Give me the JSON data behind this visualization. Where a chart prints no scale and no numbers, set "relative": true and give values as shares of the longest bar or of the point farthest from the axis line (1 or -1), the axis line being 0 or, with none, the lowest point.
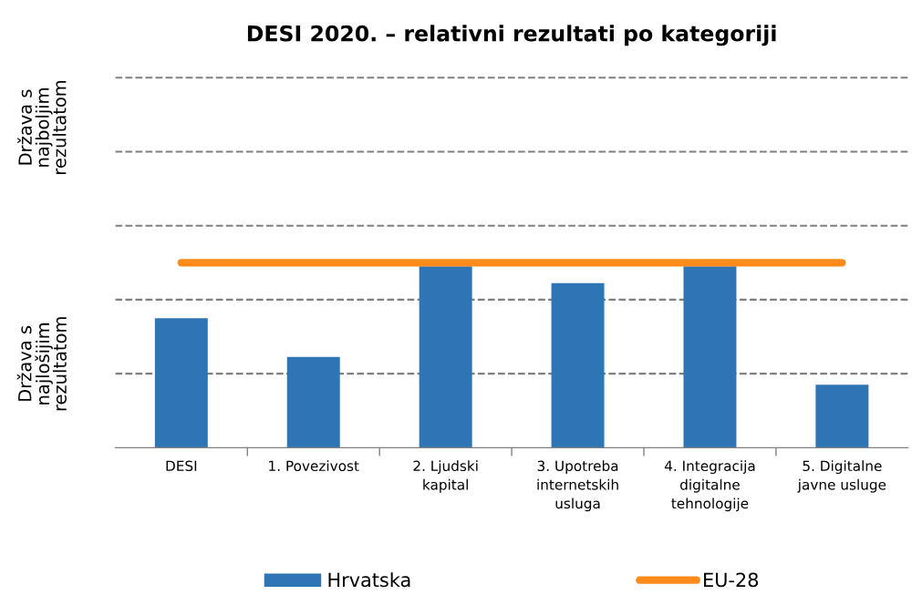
{
  "chart_data": {
    "type": "bar",
    "title": "DESI 2020. – relativni rezultati po kategoriji",
    "categories": [
      "DESI",
      "1. Povezivost",
      "2. Ljudski\nkapital",
      "3. Upotreba\ninternetskih\nusluga",
      "4. Integracija\ndigitalne\ntehnologije",
      "5. Digitalne\njavne usluge"
    ],
    "relative": true,
    "series": [
      {
        "name": "Hrvatska",
        "color": "#2e75b6",
        "values": [
          0.7,
          0.49,
          0.98,
          0.89,
          0.98,
          0.34
        ]
      },
      {
        "name": "EU-28",
        "type": "line",
        "color": "#ff8c1a",
        "values": [
          1,
          1,
          1,
          1,
          1,
          1
        ]
      }
    ],
    "annotations": [
      "Država s\nnajboljim\nrezultatom",
      "Država s\nnajlošijim\nrezultatom"
    ],
    "ref_lines": [
      {
        "axis": "y",
        "value": 0.4,
        "color": "#808080",
        "line_style": "dashed"
      },
      {
        "axis": "y",
        "value": 0.8,
        "color": "#808080",
        "line_style": "dashed"
      },
      {
        "axis": "y",
        "value": 1.2,
        "color": "#808080",
        "line_style": "dashed"
      },
      {
        "axis": "y",
        "value": 1.6,
        "color": "#808080",
        "line_style": "dashed"
      },
      {
        "axis": "y",
        "value": 2.0,
        "color": "#808080",
        "line_style": "dashed"
      }
    ],
    "legend": "bottom",
    "marker": "none"
  }
}
